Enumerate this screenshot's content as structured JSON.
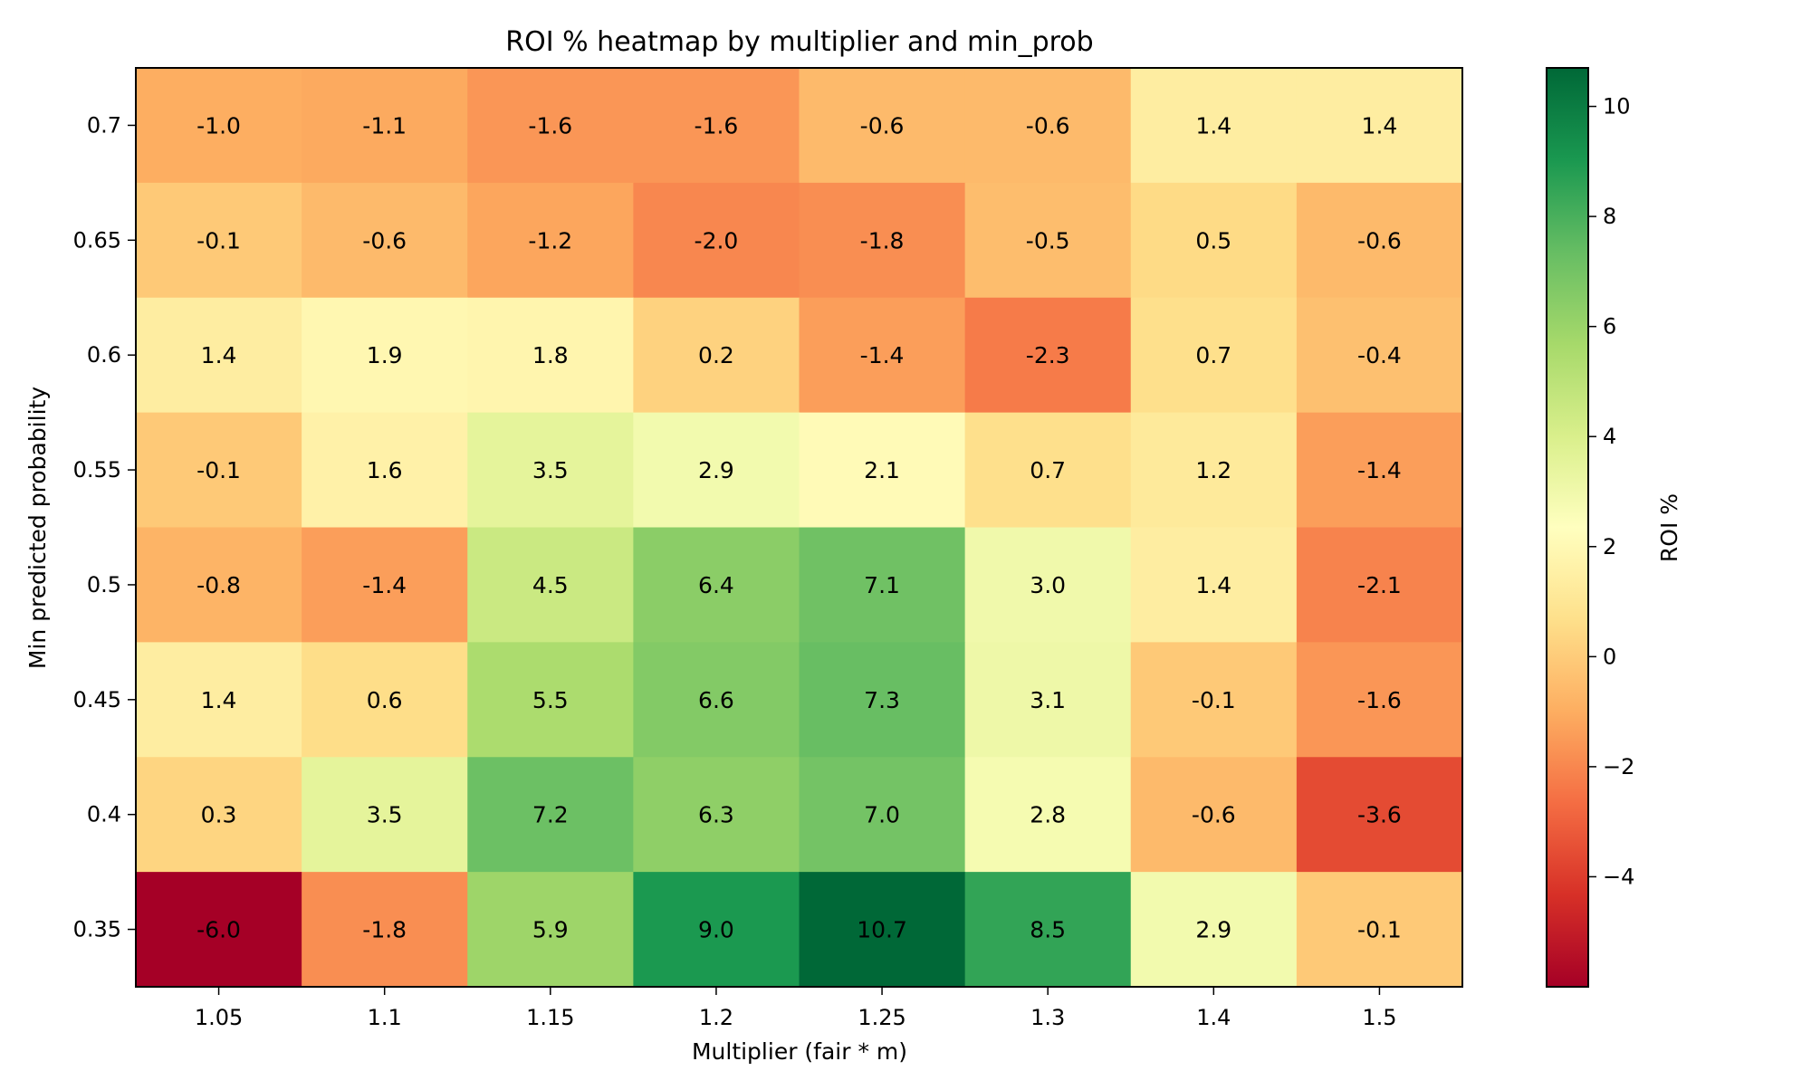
{
  "chart_data": {
    "type": "heatmap",
    "title": "ROI % heatmap by multiplier and min_prob",
    "xlabel": "Multiplier (fair * m)",
    "ylabel": "Min predicted probability",
    "x_categories": [
      "1.05",
      "1.1",
      "1.15",
      "1.2",
      "1.25",
      "1.3",
      "1.4",
      "1.5"
    ],
    "y_categories": [
      "0.7",
      "0.65",
      "0.6",
      "0.55",
      "0.5",
      "0.45",
      "0.4",
      "0.35"
    ],
    "values": [
      [
        -1.0,
        -1.1,
        -1.6,
        -1.6,
        -0.6,
        -0.6,
        1.4,
        1.4
      ],
      [
        -0.1,
        -0.6,
        -1.2,
        -2.0,
        -1.8,
        -0.5,
        0.5,
        -0.6
      ],
      [
        1.4,
        1.9,
        1.8,
        0.2,
        -1.4,
        -2.3,
        0.7,
        -0.4
      ],
      [
        -0.1,
        1.6,
        3.5,
        2.9,
        2.1,
        0.7,
        1.2,
        -1.4
      ],
      [
        -0.8,
        -1.4,
        4.5,
        6.4,
        7.1,
        3.0,
        1.4,
        -2.1
      ],
      [
        1.4,
        0.6,
        5.5,
        6.6,
        7.3,
        3.1,
        -0.1,
        -1.6
      ],
      [
        0.3,
        3.5,
        7.2,
        6.3,
        7.0,
        2.8,
        -0.6,
        -3.6
      ],
      [
        -6.0,
        -1.8,
        5.9,
        9.0,
        10.7,
        8.5,
        2.9,
        -0.1
      ]
    ],
    "value_labels": [
      [
        "-1.0",
        "-1.1",
        "-1.6",
        "-1.6",
        "-0.6",
        "-0.6",
        "1.4",
        "1.4"
      ],
      [
        "-0.1",
        "-0.6",
        "-1.2",
        "-2.0",
        "-1.8",
        "-0.5",
        "0.5",
        "-0.6"
      ],
      [
        "1.4",
        "1.9",
        "1.8",
        "0.2",
        "-1.4",
        "-2.3",
        "0.7",
        "-0.4"
      ],
      [
        "-0.1",
        "1.6",
        "3.5",
        "2.9",
        "2.1",
        "0.7",
        "1.2",
        "-1.4"
      ],
      [
        "-0.8",
        "-1.4",
        "4.5",
        "6.4",
        "7.1",
        "3.0",
        "1.4",
        "-2.1"
      ],
      [
        "1.4",
        "0.6",
        "5.5",
        "6.6",
        "7.3",
        "3.1",
        "-0.1",
        "-1.6"
      ],
      [
        "0.3",
        "3.5",
        "7.2",
        "6.3",
        "7.0",
        "2.8",
        "-0.6",
        "-3.6"
      ],
      [
        "-6.0",
        "-1.8",
        "5.9",
        "9.0",
        "10.7",
        "8.5",
        "2.9",
        "-0.1"
      ]
    ],
    "color_range": [
      -6.0,
      10.7
    ],
    "colormap": "RdYlGn",
    "colorbar": {
      "label": "ROI %",
      "ticks": [
        -4,
        -2,
        0,
        2,
        4,
        6,
        8,
        10
      ],
      "tick_labels": [
        "−4",
        "−2",
        "0",
        "2",
        "4",
        "6",
        "8",
        "10"
      ]
    },
    "grid": false,
    "legend": "colorbar-right"
  }
}
